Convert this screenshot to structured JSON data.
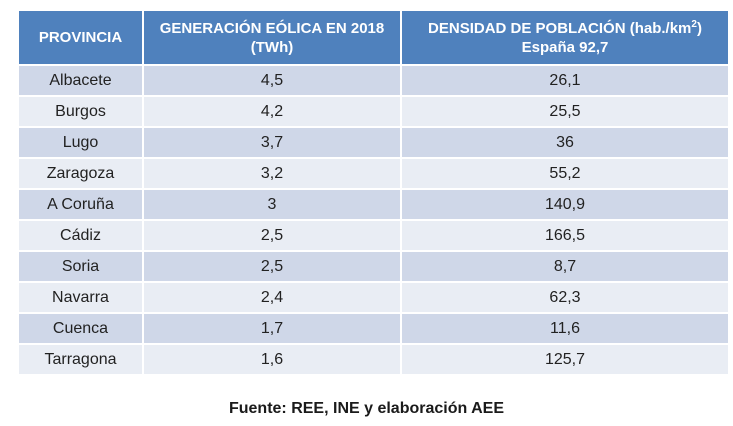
{
  "table": {
    "headers": {
      "provincia": "PROVINCIA",
      "generacion_line1": "GENERACIÓN EÓLICA EN 2018",
      "generacion_line2": "(TWh)",
      "densidad_line1_pre": "DENSIDAD DE POBLACIÓN (hab./km",
      "densidad_sup": "2",
      "densidad_line1_post": ")",
      "densidad_line2": "España 92,7"
    },
    "rows": [
      {
        "provincia": "Albacete",
        "generacion": "4,5",
        "densidad": "26,1"
      },
      {
        "provincia": "Burgos",
        "generacion": "4,2",
        "densidad": "25,5"
      },
      {
        "provincia": "Lugo",
        "generacion": "3,7",
        "densidad": "36"
      },
      {
        "provincia": "Zaragoza",
        "generacion": "3,2",
        "densidad": "55,2"
      },
      {
        "provincia": "A Coruña",
        "generacion": "3",
        "densidad": "140,9"
      },
      {
        "provincia": "Cádiz",
        "generacion": "2,5",
        "densidad": "166,5"
      },
      {
        "provincia": "Soria",
        "generacion": "2,5",
        "densidad": "8,7"
      },
      {
        "provincia": "Navarra",
        "generacion": "2,4",
        "densidad": "62,3"
      },
      {
        "provincia": "Cuenca",
        "generacion": "1,7",
        "densidad": "11,6"
      },
      {
        "provincia": "Tarragona",
        "generacion": "1,6",
        "densidad": "125,7"
      }
    ]
  },
  "caption": "Fuente: REE, INE y elaboración AEE",
  "colors": {
    "header_bg": "#4f81bd",
    "row_odd": "#cfd7e8",
    "row_even": "#e9edf4"
  }
}
